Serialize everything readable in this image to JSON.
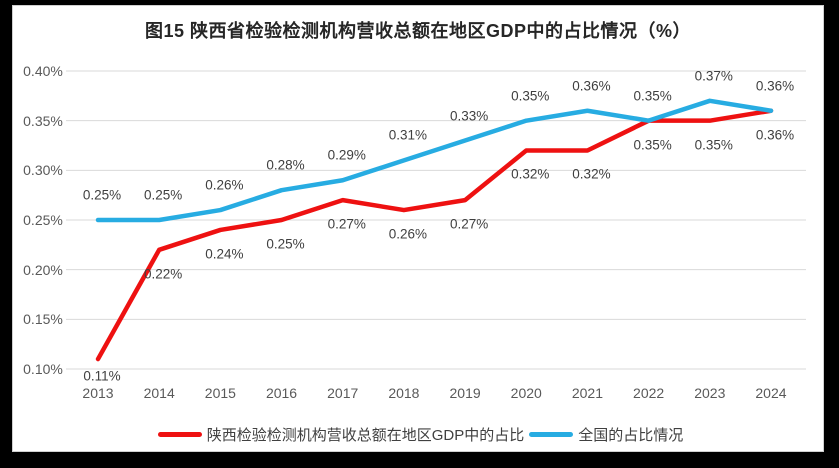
{
  "title": "图15 陕西省检验检测机构营收总额在地区GDP中的占比情况（%）",
  "chart_data": {
    "type": "line",
    "title": "图15 陕西省检验检测机构营收总额在地区GDP中的占比情况（%）",
    "categories": [
      "2013",
      "2014",
      "2015",
      "2016",
      "2017",
      "2018",
      "2019",
      "2020",
      "2021",
      "2022",
      "2023",
      "2024"
    ],
    "series": [
      {
        "name": "陕西检验检测机构营收总额在地区GDP中的占比",
        "color": "#ee1111",
        "values": [
          0.11,
          0.22,
          0.24,
          0.25,
          0.27,
          0.26,
          0.27,
          0.32,
          0.32,
          0.35,
          0.35,
          0.36
        ],
        "labels": [
          "0.11%",
          "0.22%",
          "0.24%",
          "0.25%",
          "0.27%",
          "0.26%",
          "0.27%",
          "0.32%",
          "0.32%",
          "0.35%",
          "0.35%",
          "0.36%"
        ],
        "label_position": "below"
      },
      {
        "name": "全国的占比情况",
        "color": "#27ace2",
        "values": [
          0.25,
          0.25,
          0.26,
          0.28,
          0.29,
          0.31,
          0.33,
          0.35,
          0.36,
          0.35,
          0.37,
          0.36
        ],
        "labels": [
          "0.25%",
          "0.25%",
          "0.26%",
          "0.28%",
          "0.29%",
          "0.31%",
          "0.33%",
          "0.35%",
          "0.36%",
          "0.35%",
          "0.37%",
          "0.36%"
        ],
        "label_position": "above"
      }
    ],
    "y_axis": {
      "min": 0.1,
      "max": 0.4,
      "step": 0.05,
      "tick_labels": [
        "0.10%",
        "0.15%",
        "0.20%",
        "0.25%",
        "0.30%",
        "0.35%",
        "0.40%"
      ]
    },
    "x_axis": {
      "label": ""
    },
    "grid": true,
    "gridline_color": "#d9d9d9",
    "legend_position": "bottom"
  }
}
